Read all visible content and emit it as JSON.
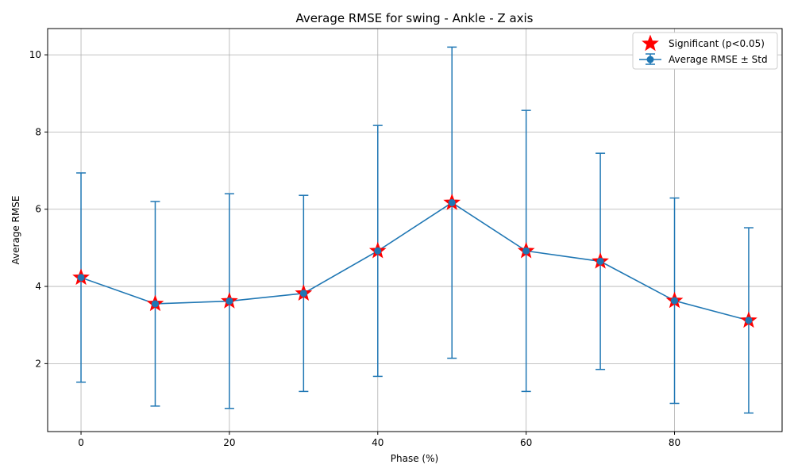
{
  "chart_data": {
    "type": "line",
    "title": "Average RMSE for swing - Ankle - Z axis",
    "xlabel": "Phase (%)",
    "ylabel": "Average RMSE",
    "xlim": [
      -4.5,
      94.5
    ],
    "ylim": [
      0.24,
      10.68
    ],
    "grid": true,
    "legend_position": "top-right",
    "x_ticks": [
      0,
      20,
      40,
      60,
      80
    ],
    "y_ticks": [
      2,
      4,
      6,
      8,
      10
    ],
    "x": [
      0,
      10,
      20,
      30,
      40,
      50,
      60,
      70,
      80,
      90
    ],
    "series": [
      {
        "name": "Average RMSE ± Std",
        "values": [
          4.23,
          3.55,
          3.62,
          3.82,
          4.92,
          6.17,
          4.92,
          4.65,
          3.63,
          3.12
        ],
        "std": [
          2.71,
          2.65,
          2.78,
          2.54,
          3.25,
          4.03,
          3.64,
          2.8,
          2.66,
          2.4
        ],
        "color": "#1f77b4"
      },
      {
        "name": "Significant (p<0.05)",
        "type": "scatter",
        "marker": "star",
        "x": [
          0,
          10,
          20,
          30,
          40,
          50,
          60,
          70,
          80,
          90
        ],
        "values": [
          4.23,
          3.55,
          3.62,
          3.82,
          4.92,
          6.17,
          4.92,
          4.65,
          3.63,
          3.12
        ],
        "color": "#ff0000"
      }
    ],
    "legend": [
      "Significant (p<0.05)",
      "Average RMSE ± Std"
    ]
  }
}
